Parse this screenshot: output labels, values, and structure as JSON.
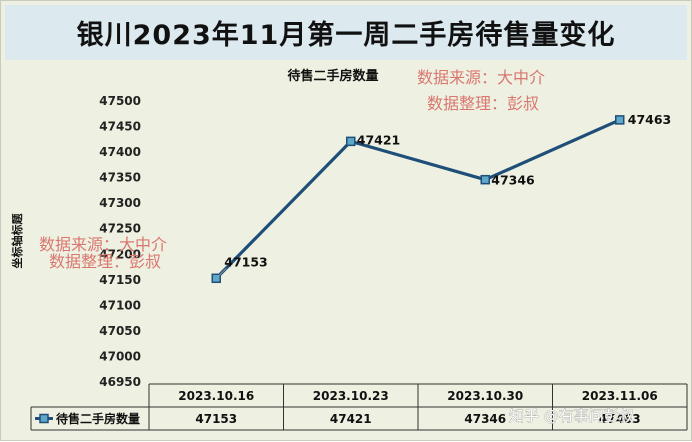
{
  "banner_title": "银川2023年11月第一周二手房待售量变化",
  "watermark": {
    "line1": "数据来源：大中介",
    "line2": "数据整理：彭叔",
    "color": "#d9776f"
  },
  "zhihu_watermark": "知乎 @有事问彭叔",
  "colors": {
    "background": "#eef1e1",
    "banner": "#dce9ef",
    "line": "#1f4e79",
    "marker_fill": "#5fa8c9"
  },
  "chart_data": {
    "type": "line",
    "title": "待售二手房数量",
    "xlabel": "",
    "ylabel": "坐标轴标题",
    "categories": [
      "2023.10.16",
      "2023.10.23",
      "2023.10.30",
      "2023.11.06"
    ],
    "series": [
      {
        "name": "待售二手房数量",
        "values": [
          47153,
          47421,
          47346,
          47463
        ]
      }
    ],
    "ylim": [
      46950,
      47500
    ],
    "ytick_step": 50,
    "grid": false,
    "legend": "data-table-left",
    "data_labels": true
  }
}
